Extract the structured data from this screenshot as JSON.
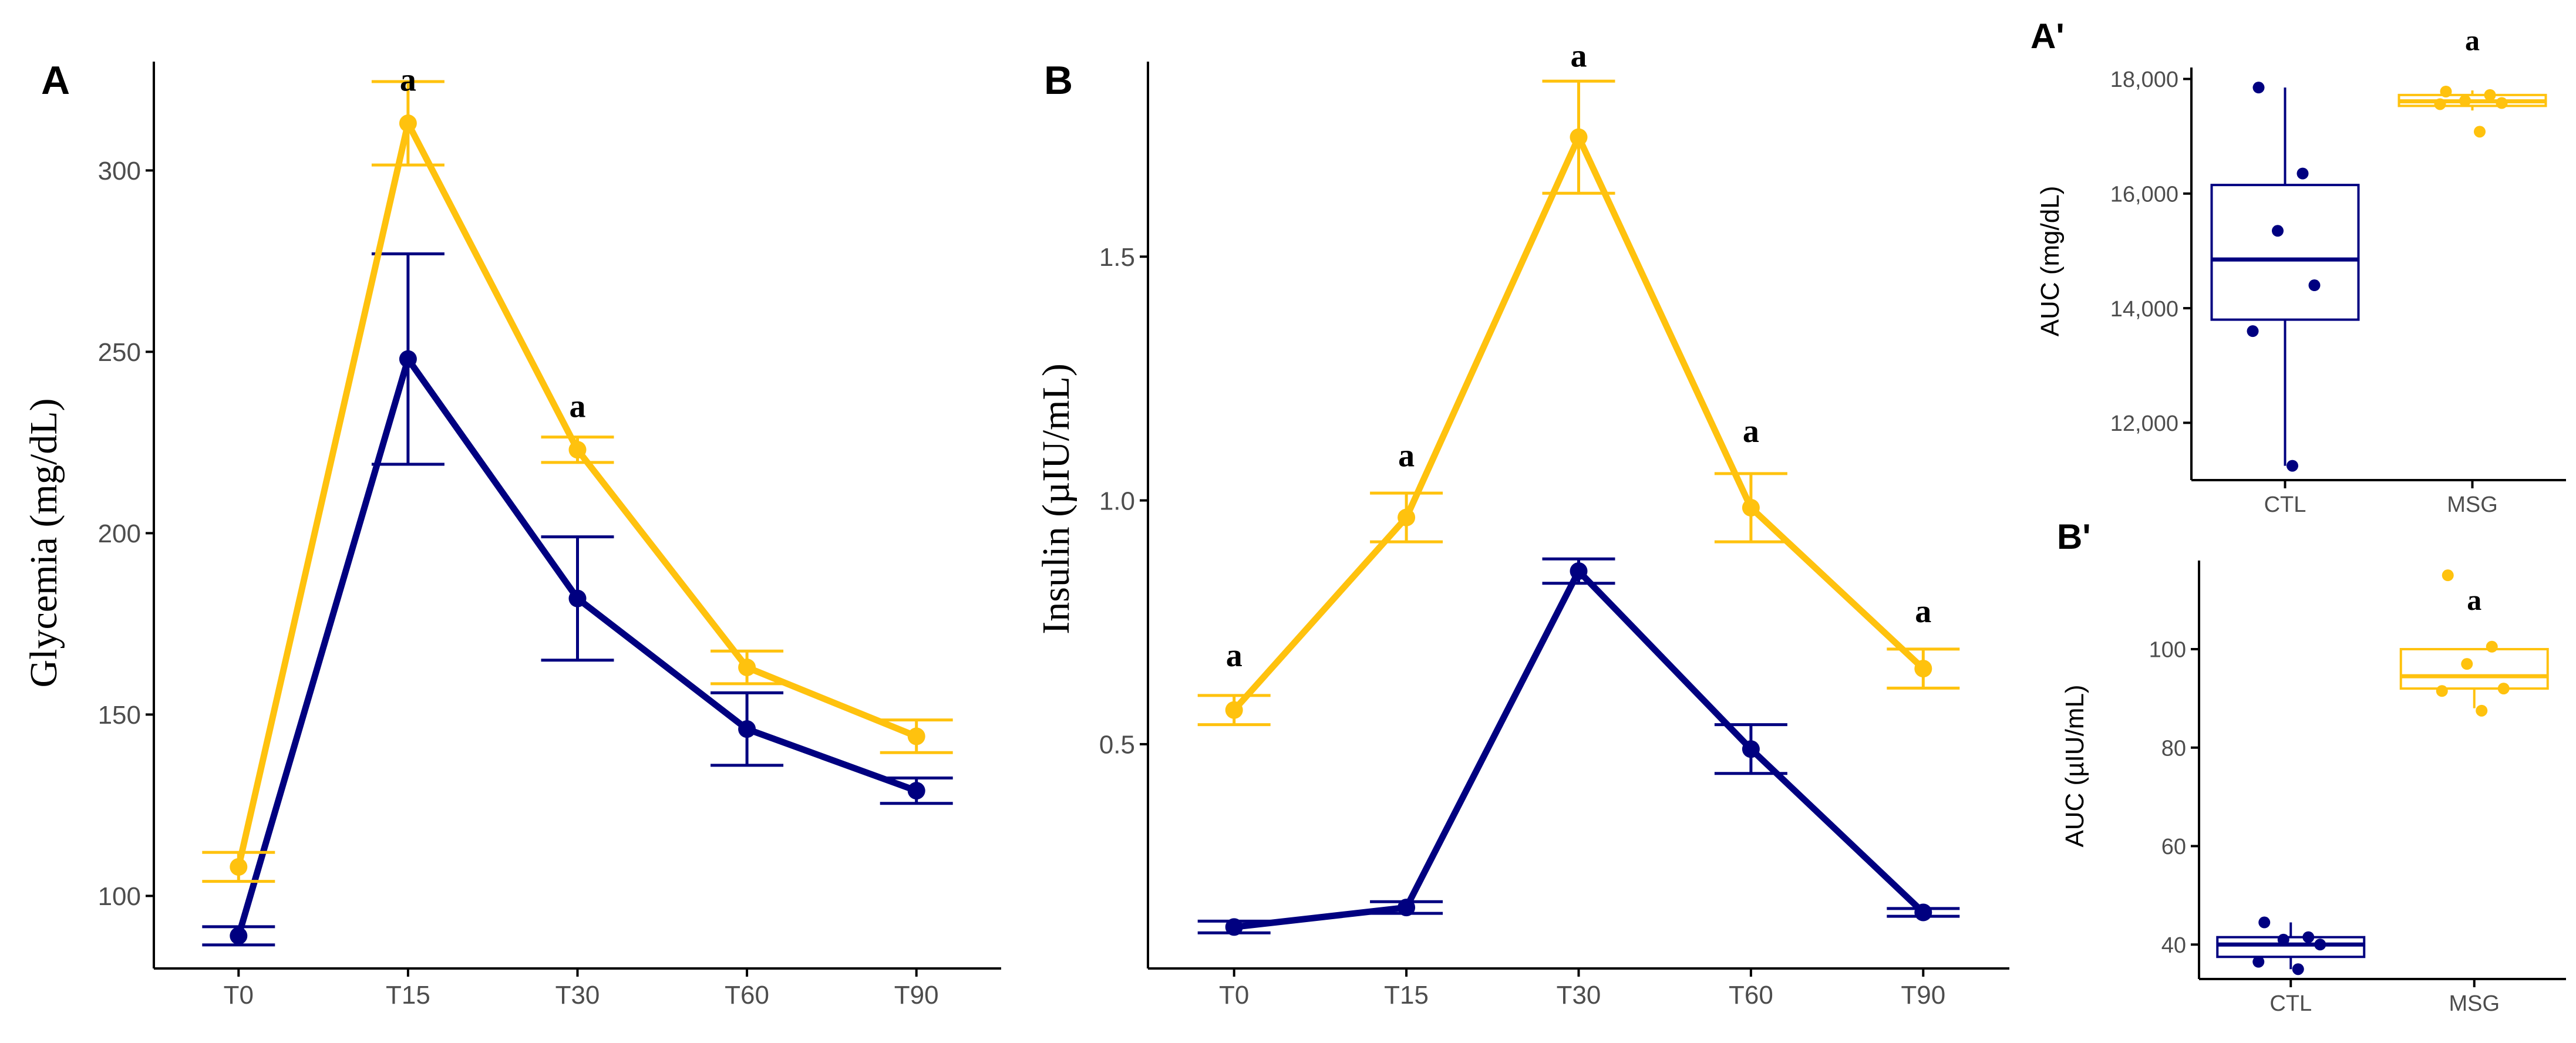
{
  "colors": {
    "ctl": "#000080",
    "msg": "#FFC20E",
    "axis": "#000000",
    "tick": "#4d4d4d"
  },
  "chart_data": [
    {
      "panel": "A",
      "type": "line",
      "xlabel": "",
      "ylabel": "Glycemia (mg/dL)",
      "categories": [
        "T0",
        "T15",
        "T30",
        "T60",
        "T90"
      ],
      "ylim": [
        80,
        330
      ],
      "yticks": [
        100,
        150,
        200,
        250,
        300
      ],
      "ytick_labels": [
        "100",
        "150",
        "200",
        "250",
        "300"
      ],
      "series": [
        {
          "name": "CTL",
          "color": "#000080",
          "values": [
            89,
            248,
            182,
            146,
            129
          ],
          "err": [
            2.5,
            29,
            17,
            10,
            3.5
          ]
        },
        {
          "name": "MSG",
          "color": "#FFC20E",
          "values": [
            108,
            313,
            223,
            163,
            144
          ],
          "err": [
            4,
            11.5,
            3.5,
            4.5,
            4.5
          ]
        }
      ],
      "annotations": [
        {
          "category": "T15",
          "y": 322,
          "text": "a"
        },
        {
          "category": "T30",
          "y": 232,
          "text": "a"
        }
      ]
    },
    {
      "panel": "B",
      "type": "line",
      "xlabel": "",
      "ylabel": "Insulin (µIU/mL)",
      "categories": [
        "T0",
        "T15",
        "T30",
        "T60",
        "T90"
      ],
      "ylim": [
        0.04,
        1.9
      ],
      "yticks": [
        0.5,
        1.0,
        1.5
      ],
      "ytick_labels": [
        "0.5",
        "1.0",
        "1.5"
      ],
      "series": [
        {
          "name": "CTL",
          "color": "#000080",
          "values": [
            0.125,
            0.165,
            0.855,
            0.49,
            0.155
          ],
          "err": [
            0.012,
            0.012,
            0.025,
            0.05,
            0.008
          ]
        },
        {
          "name": "MSG",
          "color": "#FFC20E",
          "values": [
            0.57,
            0.965,
            1.745,
            0.985,
            0.655
          ],
          "err": [
            0.03,
            0.05,
            0.115,
            0.07,
            0.04
          ]
        }
      ],
      "annotations": [
        {
          "category": "T0",
          "y": 0.66,
          "text": "a"
        },
        {
          "category": "T15",
          "y": 1.07,
          "text": "a"
        },
        {
          "category": "T30",
          "y": 1.89,
          "text": "a"
        },
        {
          "category": "T60",
          "y": 1.12,
          "text": "a"
        },
        {
          "category": "T90",
          "y": 0.75,
          "text": "a"
        }
      ]
    },
    {
      "panel": "A'",
      "type": "box",
      "xlabel": "",
      "ylabel": "AUC (mg/dL)",
      "categories": [
        "CTL",
        "MSG"
      ],
      "ylim": [
        11000,
        18200
      ],
      "yticks": [
        12000,
        14000,
        16000,
        18000
      ],
      "ytick_labels": [
        "12,000",
        "14,000",
        "16,000",
        "18,000"
      ],
      "groups": [
        {
          "name": "CTL",
          "color": "#000080",
          "q1": 13800,
          "median": 14850,
          "q3": 16150,
          "whisker_low": 11250,
          "whisker_high": 17850,
          "points": [
            17850,
            16350,
            15350,
            14400,
            13600,
            11250
          ]
        },
        {
          "name": "MSG",
          "color": "#FFC20E",
          "q1": 17530,
          "median": 17610,
          "q3": 17720,
          "whisker_low": 17450,
          "whisker_high": 17800,
          "points": [
            17780,
            17720,
            17620,
            17580,
            17560,
            17080
          ]
        }
      ],
      "annotations": [
        {
          "category": "MSG",
          "y": 18500,
          "text": "a"
        }
      ]
    },
    {
      "panel": "B'",
      "type": "box",
      "xlabel": "",
      "ylabel": "AUC (µIU/mL)",
      "categories": [
        "CTL",
        "MSG"
      ],
      "ylim": [
        33,
        118
      ],
      "yticks": [
        40,
        60,
        80,
        100
      ],
      "ytick_labels": [
        "40",
        "60",
        "80",
        "100"
      ],
      "groups": [
        {
          "name": "CTL",
          "color": "#000080",
          "q1": 37.5,
          "median": 40,
          "q3": 41.5,
          "whisker_low": 35,
          "whisker_high": 44.5,
          "points": [
            44.5,
            41.5,
            41,
            40,
            36.5,
            35
          ]
        },
        {
          "name": "MSG",
          "color": "#FFC20E",
          "q1": 92,
          "median": 94.5,
          "q3": 100,
          "whisker_low": 88,
          "whisker_high": 100,
          "points": [
            115,
            100.5,
            97,
            92,
            91.5,
            87.5
          ]
        }
      ],
      "annotations": [
        {
          "category": "MSG",
          "y": 108,
          "text": "a"
        }
      ]
    }
  ]
}
